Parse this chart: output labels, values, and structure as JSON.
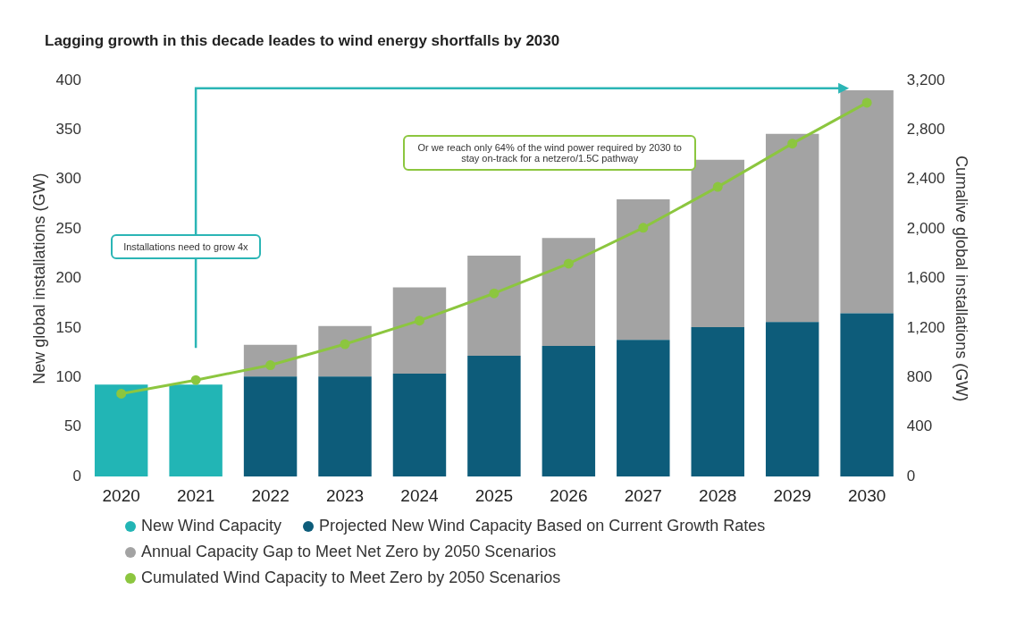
{
  "chart_data": {
    "type": "bar",
    "stacked": true,
    "title": "Lagging growth in this decade leades to wind energy shortfalls by 2030",
    "ylabel": "New global installations (GW)",
    "y2label": "Cumalive global installations (GW)",
    "categories": [
      "2020",
      "2021",
      "2022",
      "2023",
      "2024",
      "2025",
      "2026",
      "2027",
      "2028",
      "2029",
      "2030"
    ],
    "series": [
      {
        "name": "New Wind Capacity",
        "color": "#22b5b5",
        "values": [
          93,
          93,
          null,
          null,
          null,
          null,
          null,
          null,
          null,
          null,
          null
        ]
      },
      {
        "name": "Projected New Wind Capacity Based on Current Growth Rates",
        "color": "#0d5c7a",
        "values": [
          null,
          null,
          101,
          101,
          104,
          122,
          132,
          138,
          151,
          156,
          165
        ]
      },
      {
        "name": "Annual Capacity Gap to Meet Net Zero by 2050 Scenarios",
        "color": "#a3a3a3",
        "values": [
          null,
          null,
          32,
          51,
          87,
          101,
          109,
          142,
          169,
          190,
          225
        ]
      },
      {
        "name": "Cumulated Wind Capacity to Meet Zero by 2050 Scenarios",
        "type": "line",
        "axis": "y2",
        "color": "#8cc63f",
        "values": [
          670,
          780,
          900,
          1070,
          1260,
          1480,
          1720,
          2010,
          2340,
          2690,
          3020
        ]
      }
    ],
    "ylim": [
      0,
      400
    ],
    "yticks": [
      0,
      50,
      100,
      150,
      200,
      250,
      300,
      350,
      400
    ],
    "y2lim": [
      0,
      3200
    ],
    "y2ticks": [
      0,
      {
        "value": 400,
        "label": "400"
      },
      {
        "value": 800,
        "label": "800"
      },
      {
        "value": 1200,
        "label": "1,200"
      },
      {
        "value": 1600,
        "label": "1,600"
      },
      {
        "value": 2000,
        "label": "2,000"
      },
      {
        "value": 2400,
        "label": "2,400"
      },
      {
        "value": 2800,
        "label": "2,800"
      },
      {
        "value": 3200,
        "label": "3,200"
      }
    ],
    "grid": false,
    "legend": "bottom",
    "marker": "circle",
    "line_style": "solid",
    "annotations": [
      "Installations need to grow 4x",
      "Or we reach only 64% of the wind power required by 2030 to stay on-track for a netzero/1.5C pathway"
    ]
  }
}
